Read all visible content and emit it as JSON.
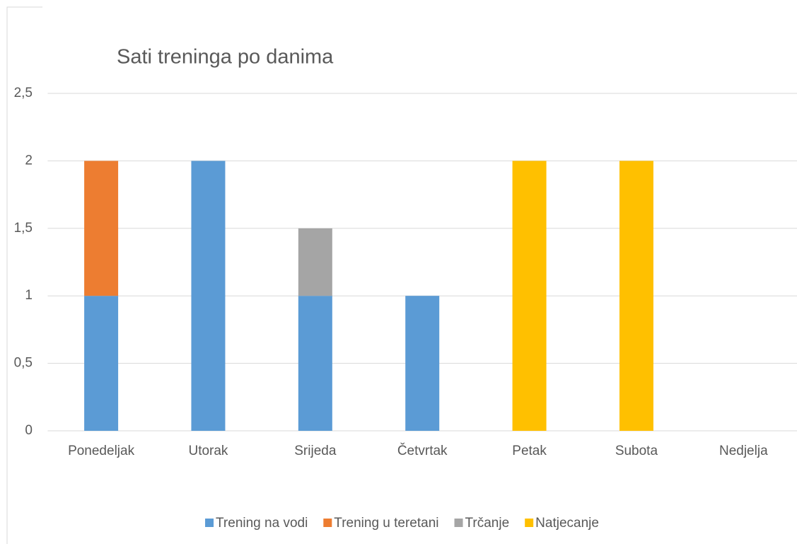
{
  "chart_data": {
    "type": "stacked_bar",
    "title": "Sati treninga po danima",
    "categories": [
      "Ponedeljak",
      "Utorak",
      "Srijeda",
      "Četvrtak",
      "Petak",
      "Subota",
      "Nedjelja"
    ],
    "series": [
      {
        "name": "Trening na vodi",
        "color": "#5b9bd5",
        "values": [
          1,
          2,
          1,
          1,
          null,
          null,
          null
        ]
      },
      {
        "name": "Trening u teretani",
        "color": "#ed7d31",
        "values": [
          1,
          null,
          null,
          null,
          null,
          null,
          null
        ]
      },
      {
        "name": "Trčanje",
        "color": "#a5a5a5",
        "values": [
          null,
          null,
          0.5,
          null,
          null,
          null,
          null
        ]
      },
      {
        "name": "Natjecanje",
        "color": "#ffc000",
        "values": [
          null,
          null,
          null,
          null,
          2,
          2,
          null
        ]
      }
    ],
    "ylim": [
      0,
      2.5
    ],
    "yticks": [
      0,
      {
        "value": 0.5,
        "label": "0,5"
      },
      1,
      {
        "value": 1.5,
        "label": "1,5"
      },
      2,
      {
        "value": 2.5,
        "label": "2,5"
      }
    ],
    "grid": true,
    "legend": "bottom"
  }
}
